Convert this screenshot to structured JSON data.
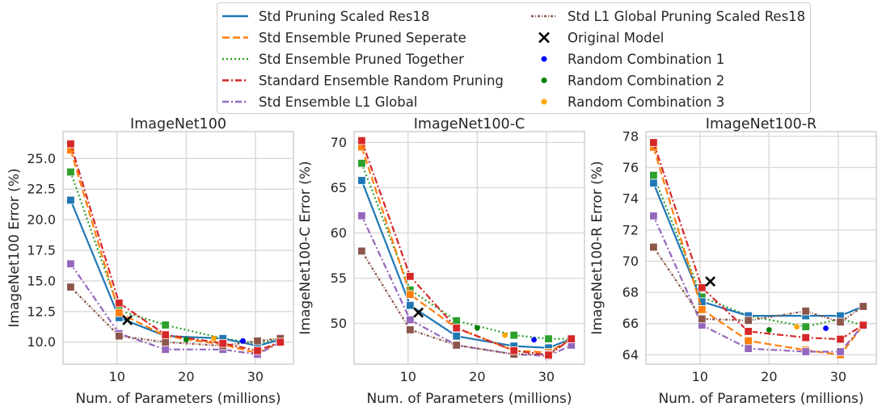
{
  "legend": {
    "entries": [
      {
        "label": "Std Pruning Scaled Res18",
        "color": "#1f77b4",
        "style": "solid"
      },
      {
        "label": "Std Ensemble Pruned Seperate",
        "color": "#ff7f0e",
        "style": "dashed"
      },
      {
        "label": "Std Ensemble Pruned Together",
        "color": "#2ca02c",
        "style": "dotted"
      },
      {
        "label": "Standard Ensemble Random Pruning",
        "color": "#d62728",
        "style": "dashdot"
      },
      {
        "label": "Std Ensemble L1 Global",
        "color": "#9467bd",
        "style": "dashdot"
      },
      {
        "label": "Std L1 Global Pruning Scaled Res18",
        "color": "#8c564b",
        "style": "densedot"
      },
      {
        "label": "Original Model",
        "color": "#000000",
        "style": "x"
      },
      {
        "label": "Random Combination 1",
        "color": "#0000ff",
        "style": "dot"
      },
      {
        "label": "Random Combination 2",
        "color": "#008000",
        "style": "dot"
      },
      {
        "label": "Random Combination 3",
        "color": "#ffa500",
        "style": "dot"
      }
    ]
  },
  "chart_data": [
    {
      "type": "line",
      "title": "ImageNet100",
      "xlabel": "Num. of Parameters (millions)",
      "ylabel": "ImageNet100 Error (%)",
      "xlim": [
        2.2,
        35.5
      ],
      "ylim": [
        8.2,
        27.2
      ],
      "xticks": [
        10,
        20,
        30
      ],
      "yticks": [
        10.0,
        12.5,
        15.0,
        17.5,
        20.0,
        22.5,
        25.0
      ],
      "ytick_labels": [
        "10.0",
        "12.5",
        "15.0",
        "17.5",
        "20.0",
        "22.5",
        "25.0"
      ],
      "grid": true,
      "series": [
        {
          "name": "Std Pruning Scaled Res18",
          "x": [
            3.3,
            10.3,
            17.0,
            25.3,
            30.3,
            33.6
          ],
          "y": [
            21.6,
            12.0,
            10.5,
            10.3,
            9.7,
            10.2
          ]
        },
        {
          "name": "Std Ensemble Pruned Seperate",
          "x": [
            3.3,
            10.3,
            17.0,
            25.3,
            30.3,
            33.6
          ],
          "y": [
            25.7,
            12.4,
            10.5,
            9.8,
            9.1,
            10.0
          ]
        },
        {
          "name": "Std Ensemble Pruned Together",
          "x": [
            3.3,
            10.3,
            17.0,
            25.3,
            30.3,
            33.6
          ],
          "y": [
            23.9,
            12.6,
            11.4,
            10.3,
            9.9,
            10.3
          ]
        },
        {
          "name": "Standard Ensemble Random Pruning",
          "x": [
            3.3,
            10.3,
            17.0,
            25.3,
            30.3,
            33.6
          ],
          "y": [
            26.2,
            13.2,
            10.6,
            9.9,
            9.3,
            10.0
          ]
        },
        {
          "name": "Std Ensemble L1 Global",
          "x": [
            3.3,
            10.3,
            17.0,
            25.3,
            30.3,
            33.6
          ],
          "y": [
            16.4,
            10.7,
            9.4,
            9.4,
            9.0,
            10.0
          ]
        },
        {
          "name": "Std L1 Global Pruning Scaled Res18",
          "x": [
            3.3,
            10.3,
            17.0,
            25.3,
            30.3,
            33.6
          ],
          "y": [
            14.5,
            10.5,
            10.0,
            9.7,
            10.1,
            10.3
          ]
        }
      ],
      "original_model": {
        "x": 11.5,
        "y": 11.8
      },
      "random_combinations": [
        {
          "name": "Random Combination 1",
          "x": 28.2,
          "y": 10.1
        },
        {
          "name": "Random Combination 2",
          "x": 20.0,
          "y": 10.2
        },
        {
          "name": "Random Combination 3",
          "x": 24.0,
          "y": 10.3
        }
      ]
    },
    {
      "type": "line",
      "title": "ImageNet100-C",
      "xlabel": "Num. of Parameters (millions)",
      "ylabel": "ImageNet100-C Error (%)",
      "xlim": [
        2.2,
        35.5
      ],
      "ylim": [
        45.5,
        71.2
      ],
      "xticks": [
        10,
        20,
        30
      ],
      "yticks": [
        50,
        55,
        60,
        65,
        70
      ],
      "ytick_labels": [
        "50",
        "55",
        "60",
        "65",
        "70"
      ],
      "grid": true,
      "series": [
        {
          "name": "Std Pruning Scaled Res18",
          "x": [
            3.3,
            10.3,
            17.0,
            25.3,
            30.3,
            33.6
          ],
          "y": [
            65.8,
            52.0,
            48.6,
            47.5,
            47.3,
            48.3
          ]
        },
        {
          "name": "Std Ensemble Pruned Seperate",
          "x": [
            3.3,
            10.3,
            17.0,
            25.3,
            30.3,
            33.6
          ],
          "y": [
            69.5,
            53.2,
            49.5,
            47.0,
            46.8,
            48.3
          ]
        },
        {
          "name": "Std Ensemble Pruned Together",
          "x": [
            3.3,
            10.3,
            17.0,
            25.3,
            30.3,
            33.6
          ],
          "y": [
            67.7,
            53.7,
            50.3,
            48.7,
            48.3,
            48.3
          ]
        },
        {
          "name": "Standard Ensemble Random Pruning",
          "x": [
            3.3,
            10.3,
            17.0,
            25.3,
            30.3,
            33.6
          ],
          "y": [
            70.2,
            55.2,
            49.5,
            47.0,
            46.5,
            48.3
          ]
        },
        {
          "name": "Std Ensemble L1 Global",
          "x": [
            3.3,
            10.3,
            17.0,
            25.3,
            30.3,
            33.6
          ],
          "y": [
            61.9,
            50.4,
            47.6,
            46.6,
            46.4,
            47.6
          ]
        },
        {
          "name": "Std L1 Global Pruning Scaled Res18",
          "x": [
            3.3,
            10.3,
            17.0,
            25.3,
            30.3,
            33.6
          ],
          "y": [
            58.0,
            49.3,
            47.6,
            46.6,
            46.6,
            48.3
          ]
        }
      ],
      "original_model": {
        "x": 11.5,
        "y": 51.2
      },
      "random_combinations": [
        {
          "name": "Random Combination 1",
          "x": 28.2,
          "y": 48.2
        },
        {
          "name": "Random Combination 2",
          "x": 20.0,
          "y": 49.5
        },
        {
          "name": "Random Combination 3",
          "x": 24.0,
          "y": 48.7
        }
      ]
    },
    {
      "type": "line",
      "title": "ImageNet100-R",
      "xlabel": "Num. of Parameters (millions)",
      "ylabel": "ImageNet100-R Error (%)",
      "xlim": [
        2.2,
        35.5
      ],
      "ylim": [
        63.4,
        78.3
      ],
      "xticks": [
        10,
        20,
        30
      ],
      "yticks": [
        64,
        66,
        68,
        70,
        72,
        74,
        76,
        78
      ],
      "ytick_labels": [
        "64",
        "66",
        "68",
        "70",
        "72",
        "74",
        "76",
        "78"
      ],
      "grid": true,
      "series": [
        {
          "name": "Std Pruning Scaled Res18",
          "x": [
            3.3,
            10.3,
            17.0,
            25.3,
            30.3,
            33.6
          ],
          "y": [
            75.0,
            67.4,
            66.5,
            66.5,
            66.5,
            67.1
          ]
        },
        {
          "name": "Std Ensemble Pruned Seperate",
          "x": [
            3.3,
            10.3,
            17.0,
            25.3,
            30.3,
            33.6
          ],
          "y": [
            77.3,
            66.9,
            64.9,
            64.3,
            64.0,
            65.9
          ]
        },
        {
          "name": "Std Ensemble Pruned Together",
          "x": [
            3.3,
            10.3,
            17.0,
            25.3,
            30.3,
            33.6
          ],
          "y": [
            75.5,
            67.7,
            66.5,
            65.8,
            66.3,
            65.9
          ]
        },
        {
          "name": "Standard Ensemble Random Pruning",
          "x": [
            3.3,
            10.3,
            17.0,
            25.3,
            30.3,
            33.6
          ],
          "y": [
            77.6,
            68.3,
            65.5,
            65.1,
            65.0,
            65.9
          ]
        },
        {
          "name": "Std Ensemble L1 Global",
          "x": [
            3.3,
            10.3,
            17.0,
            25.3,
            30.3,
            33.6
          ],
          "y": [
            72.9,
            65.9,
            64.4,
            64.2,
            64.2,
            65.9
          ]
        },
        {
          "name": "Std L1 Global Pruning Scaled Res18",
          "x": [
            3.3,
            10.3,
            17.0,
            25.3,
            30.3,
            33.6
          ],
          "y": [
            70.9,
            66.3,
            66.2,
            66.8,
            66.1,
            67.1
          ]
        }
      ],
      "original_model": {
        "x": 11.5,
        "y": 68.7
      },
      "random_combinations": [
        {
          "name": "Random Combination 1",
          "x": 28.2,
          "y": 65.7
        },
        {
          "name": "Random Combination 2",
          "x": 20.0,
          "y": 65.6
        },
        {
          "name": "Random Combination 3",
          "x": 24.0,
          "y": 65.8
        }
      ]
    }
  ]
}
